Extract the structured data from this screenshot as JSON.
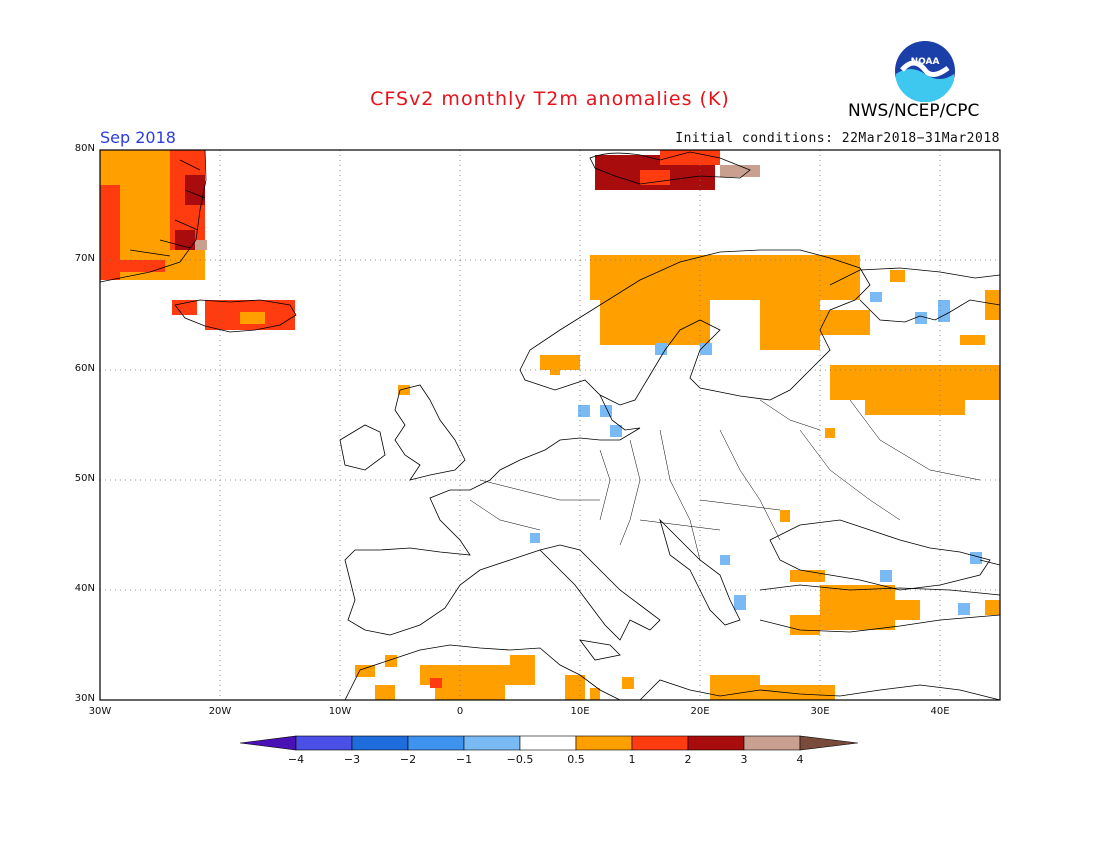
{
  "header": {
    "title": "CFSv2 monthly T2m anomalies (K)",
    "period": "Sep 2018",
    "initial_conditions": "Initial conditions: 22Mar2018−31Mar2018",
    "organization": "NWS/NCEP/CPC",
    "logo_text": "NOAA"
  },
  "axes": {
    "lat_ticks": [
      "80N",
      "70N",
      "60N",
      "50N",
      "40N",
      "30N"
    ],
    "lon_ticks": [
      "30W",
      "20W",
      "10W",
      "0",
      "10E",
      "20E",
      "30E",
      "40E"
    ],
    "lon_range": [
      -30,
      45
    ],
    "lat_range": [
      30,
      80
    ],
    "grid": "dotted"
  },
  "colorbar": {
    "labels": [
      "−4",
      "−3",
      "−2",
      "−1",
      "−0.5",
      "0.5",
      "1",
      "2",
      "3",
      "4"
    ],
    "colors": [
      "#4a12b4",
      "#4a4fe6",
      "#1f6cdc",
      "#3e93ee",
      "#79b9f4",
      "#ffffff",
      "#ffa000",
      "#ff3c10",
      "#a80c0c",
      "#c9a08f",
      "#7a4a3a"
    ]
  },
  "map": {
    "anomaly_colors": {
      "pos1": "#ffa000",
      "pos2": "#ff3c10",
      "pos3": "#a80c0c",
      "pos4": "#c9a08f",
      "neg1": "#79b9f4"
    }
  }
}
